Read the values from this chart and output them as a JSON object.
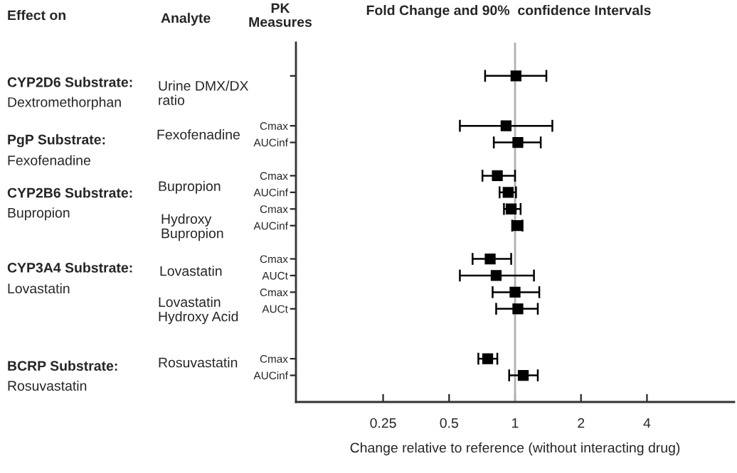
{
  "chart_data": {
    "type": "scatter",
    "orientation": "horizontal",
    "title": "Fold Change and 90%  confidence Intervals",
    "xlabel": "Change relative to reference (without interacting drug)",
    "categories": [
      null,
      null,
      null,
      "Cmax",
      "AUCinf",
      null,
      "Cmax",
      "AUCinf",
      "Cmax",
      "AUCinf",
      null,
      "Cmax",
      "AUCt",
      "Cmax",
      "AUCt",
      null,
      null,
      "Cmax",
      "AUCinf"
    ],
    "values": [
      1.01,
      null,
      null,
      0.91,
      1.03,
      null,
      0.83,
      0.93,
      0.96,
      1.03,
      null,
      0.77,
      0.82,
      1.0,
      1.03,
      null,
      null,
      0.75,
      1.09
    ],
    "errors": [
      [
        0.73,
        1.39
      ],
      null,
      null,
      [
        0.56,
        1.48
      ],
      [
        0.8,
        1.31
      ],
      null,
      [
        0.71,
        1.0
      ],
      [
        0.85,
        1.01
      ],
      [
        0.89,
        1.06
      ],
      [
        0.97,
        1.08
      ],
      null,
      [
        0.64,
        0.96
      ],
      [
        0.56,
        1.22
      ],
      [
        0.79,
        1.29
      ],
      [
        0.82,
        1.27
      ],
      null,
      null,
      [
        0.68,
        0.83
      ],
      [
        0.94,
        1.27
      ]
    ],
    "color": "#000000",
    "marker": "square",
    "log": "x",
    "xlim": [
      0.1,
      10
    ],
    "xticks": [
      0.25,
      0.5,
      1,
      2,
      4
    ],
    "ref_lines": [
      {
        "axis": "x",
        "value": 1,
        "color": "#b0b0b0"
      }
    ],
    "grid": false,
    "annotations": [
      "Effect on",
      "Analyte",
      "PK\nMeasures",
      "CYP2D6 Substrate:",
      "Dextromethorphan",
      "PgP Substrate:",
      "Fexofenadine",
      "CYP2B6 Substrate:",
      "Bupropion",
      "CYP3A4 Substrate:",
      "Lovastatin",
      "BCRP Substrate:",
      "Rosuvastatin",
      "Urine DMX/DX\nratio",
      "Fexofenadine",
      "Bupropion",
      "Hydroxy\nBupropion",
      "Lovastatin",
      "Lovastatin\nHydroxy Acid",
      "Rosuvastatin"
    ]
  }
}
